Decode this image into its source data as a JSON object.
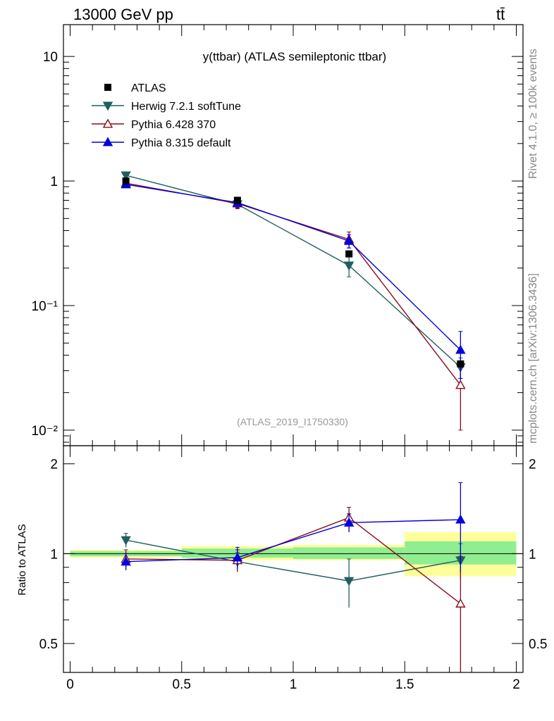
{
  "header": {
    "energy_label": "13000 GeV pp",
    "process_label": "tt̄"
  },
  "side_text": {
    "rivet": "Rivet 4.1.0, ≥ 100k events",
    "mcplots": "mcplots.cern.ch [arXiv:1306.3436]"
  },
  "colors": {
    "atlas": "#000000",
    "herwig": "#1f5f5f",
    "pythia6": "#8b0a1e",
    "pythia8": "#0000dd",
    "band_inner": "#90ee90",
    "band_outer": "#ffff99"
  },
  "chart_data": {
    "type": "line",
    "title": "y(ttbar) (ATLAS semileptonic ttbar)",
    "analysis_id": "(ATLAS_2019_I1750330)",
    "xlabel": "",
    "ylabel_main": "",
    "ylabel_ratio": "Ratio to ATLAS",
    "xlim": [
      -0.03,
      2.03
    ],
    "ylim_main": [
      0.0075,
      18
    ],
    "yscale_main": "log",
    "ylim_ratio": [
      0.4,
      2.3
    ],
    "yscale_ratio": "log",
    "x_tick_labels": [
      "0",
      "0.5",
      "1",
      "1.5",
      "2"
    ],
    "main_tick_labels": [
      {
        "value": 10,
        "label": "10"
      },
      {
        "value": 1,
        "label": "1"
      },
      {
        "value": 0.1,
        "label": "10⁻¹"
      },
      {
        "value": 0.01,
        "label": "10⁻²"
      }
    ],
    "ratio_tick_labels": [
      {
        "value": 2,
        "label": "2"
      },
      {
        "value": 1,
        "label": "1"
      },
      {
        "value": 0.5,
        "label": "0.5"
      }
    ],
    "bins": [
      [
        0,
        0.5
      ],
      [
        0.5,
        1.0
      ],
      [
        1.0,
        1.5
      ],
      [
        1.5,
        2.0
      ]
    ],
    "x": [
      0.25,
      0.75,
      1.25,
      1.75
    ],
    "reference_band": {
      "inner": [
        [
          0.98,
          1.02
        ],
        [
          0.97,
          1.04
        ],
        [
          0.96,
          1.05
        ],
        [
          0.92,
          1.1
        ]
      ],
      "outer": [
        [
          0.97,
          1.03
        ],
        [
          0.95,
          1.06
        ],
        [
          0.95,
          1.07
        ],
        [
          0.84,
          1.18
        ]
      ]
    },
    "series": [
      {
        "name": "ATLAS",
        "key": "atlas",
        "marker": "square",
        "values": [
          1.0,
          0.7,
          0.26,
          0.034
        ],
        "err_lo": [
          0.02,
          0.02,
          0.01,
          0.001
        ],
        "err_hi": [
          0.02,
          0.02,
          0.01,
          0.001
        ],
        "ratio": [
          1.0,
          1.0,
          1.0,
          1.0
        ],
        "ratio_err_lo": [
          0,
          0,
          0,
          0
        ],
        "ratio_err_hi": [
          0,
          0,
          0,
          0
        ]
      },
      {
        "name": "Herwig 7.2.1 softTune",
        "key": "herwig",
        "marker": "triangle-down",
        "values": [
          1.11,
          0.65,
          0.21,
          0.032
        ],
        "err_lo": [
          0.06,
          0.05,
          0.04,
          0.006
        ],
        "err_hi": [
          0.06,
          0.05,
          0.04,
          0.006
        ],
        "ratio": [
          1.11,
          0.94,
          0.81,
          0.95
        ],
        "ratio_err_lo": [
          0.06,
          0.07,
          0.15,
          0.13
        ],
        "ratio_err_hi": [
          0.06,
          0.07,
          0.15,
          0.13
        ]
      },
      {
        "name": "Pythia 6.428 370",
        "key": "pythia6",
        "marker": "triangle-open",
        "values": [
          0.96,
          0.66,
          0.34,
          0.023
        ],
        "err_lo": [
          0.06,
          0.06,
          0.05,
          0.013
        ],
        "err_hi": [
          0.06,
          0.06,
          0.05,
          0.013
        ],
        "ratio": [
          0.96,
          0.95,
          1.32,
          0.68
        ],
        "ratio_err_lo": [
          0.07,
          0.08,
          0.11,
          0.3
        ],
        "ratio_err_hi": [
          0.07,
          0.08,
          0.11,
          0.3
        ]
      },
      {
        "name": "Pythia 8.315 default",
        "key": "pythia8",
        "marker": "triangle-up",
        "values": [
          0.94,
          0.67,
          0.33,
          0.044
        ],
        "err_lo": [
          0.05,
          0.06,
          0.04,
          0.018
        ],
        "err_hi": [
          0.05,
          0.06,
          0.04,
          0.018
        ],
        "ratio": [
          0.94,
          0.97,
          1.27,
          1.3
        ],
        "ratio_err_lo": [
          0.06,
          0.08,
          0.09,
          0.43
        ],
        "ratio_err_hi": [
          0.06,
          0.08,
          0.09,
          0.43
        ]
      }
    ]
  }
}
